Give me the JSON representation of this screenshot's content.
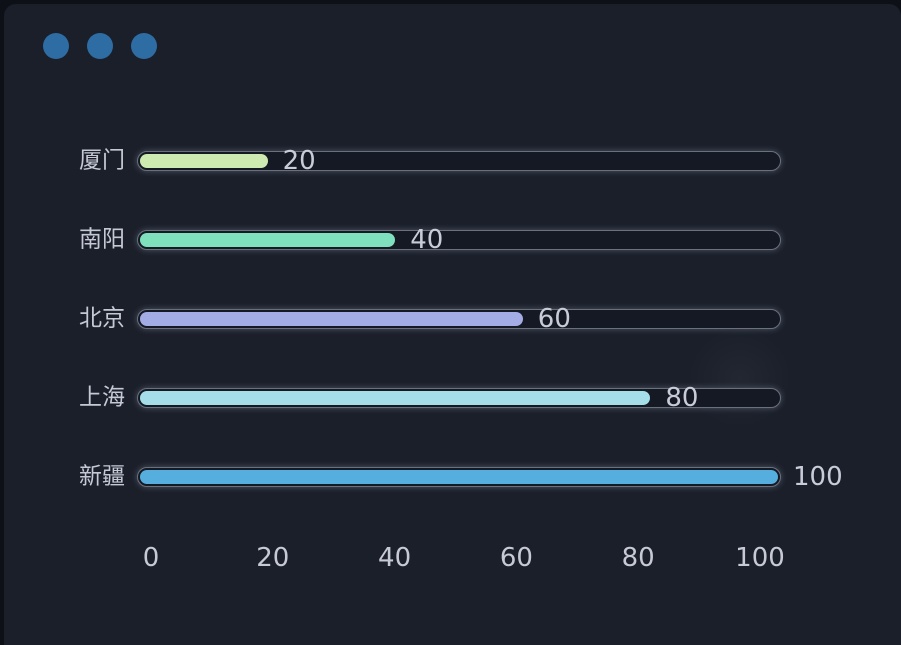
{
  "window": {
    "controls": {
      "count": 3,
      "dot_color": "#2e6da4"
    }
  },
  "chart_data": {
    "type": "bar",
    "orientation": "horizontal",
    "title": "",
    "xlabel": "",
    "ylabel": "",
    "categories": [
      "厦门",
      "南阳",
      "北京",
      "上海",
      "新疆"
    ],
    "values": [
      20,
      40,
      60,
      80,
      100
    ],
    "value_labels": [
      "20",
      "40",
      "60",
      "80",
      "100"
    ],
    "bar_colors": [
      "#cdeab0",
      "#7fe0bd",
      "#a4ace6",
      "#a5dee9",
      "#55aede"
    ],
    "xlim": [
      0,
      100
    ],
    "x_ticks": [
      "0",
      "20",
      "40",
      "60",
      "80",
      "100"
    ],
    "grid": false,
    "legend": false,
    "track_color": "#141924",
    "track_border_color": "#6a707c",
    "label_color": "#c6c8d6",
    "value_color": "#c9cbd9"
  }
}
